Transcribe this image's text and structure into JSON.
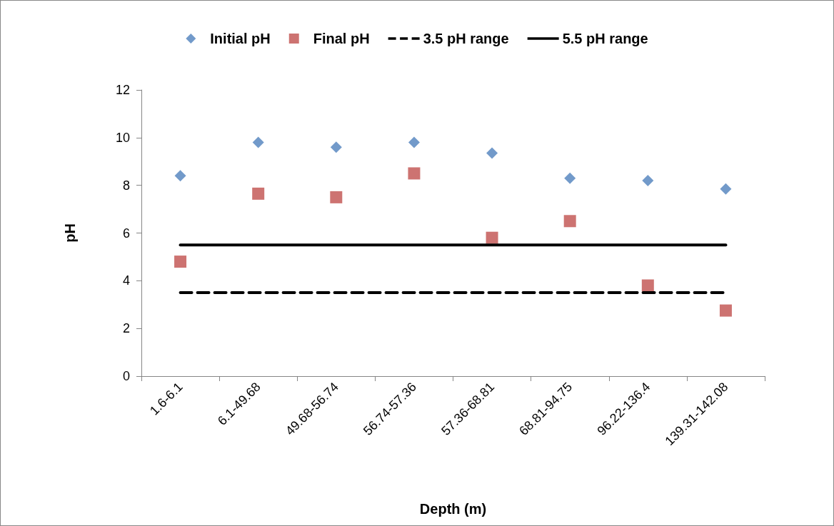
{
  "chart_data": {
    "type": "scatter",
    "xlabel": "Depth (m)",
    "ylabel": "pH",
    "categories": [
      "1.6-6.1",
      "6.1-49.68",
      "49.68-56.74",
      "56.74-57.36",
      "57.36-68.81",
      "68.81-94.75",
      "96.22-136.4",
      "139.31-142.08"
    ],
    "series": [
      {
        "name": "Initial pH",
        "marker": "diamond",
        "color": "#4f81bd",
        "values": [
          8.4,
          9.8,
          9.6,
          9.8,
          9.35,
          8.3,
          8.2,
          7.85
        ]
      },
      {
        "name": "Final pH",
        "marker": "square",
        "color": "#c0504d",
        "values": [
          4.8,
          7.65,
          7.5,
          8.5,
          5.8,
          6.5,
          3.8,
          2.75
        ]
      },
      {
        "name": "3.5 pH range",
        "type": "line",
        "marker": "none",
        "line_style": "dashed",
        "color": "#000000",
        "values": [
          3.5,
          3.5,
          3.5,
          3.5,
          3.5,
          3.5,
          3.5,
          3.5
        ]
      },
      {
        "name": "5.5 pH range",
        "type": "line",
        "marker": "none",
        "line_style": "solid",
        "color": "#000000",
        "values": [
          5.5,
          5.5,
          5.5,
          5.5,
          5.5,
          5.5,
          5.5,
          5.5
        ]
      }
    ],
    "ylim": [
      0,
      12
    ],
    "yticks": [
      0,
      2,
      4,
      6,
      8,
      10,
      12
    ],
    "grid": false,
    "legend": "top"
  }
}
